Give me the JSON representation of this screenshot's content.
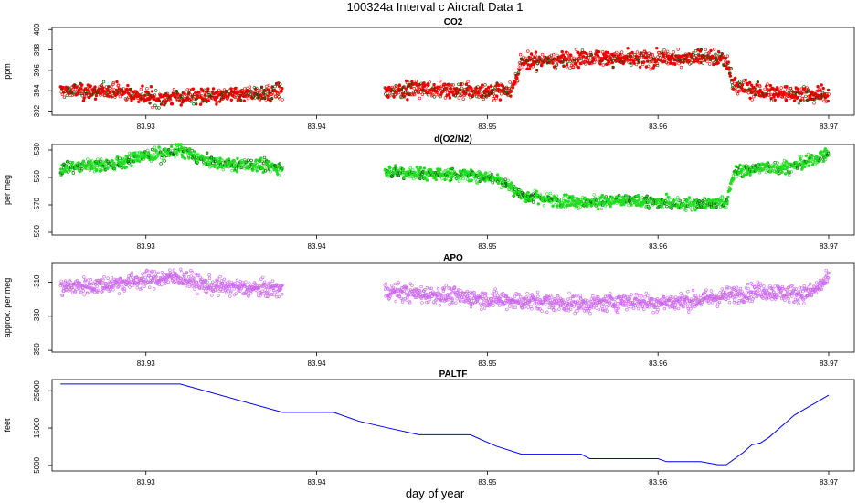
{
  "page": {
    "title": "100324a   Interval c Aircraft Data 1",
    "xlabel": "day of year"
  },
  "colors": {
    "co2": "#ee0000",
    "o2n2": "#22dd22",
    "apo": "#cc66ee",
    "paltf": "#0000ee",
    "axis": "#000000"
  },
  "chart_data": [
    {
      "type": "scatter",
      "title": "CO2",
      "ylabel": "ppm",
      "xlim": [
        83.9245,
        83.9715
      ],
      "ylim": [
        391.6,
        400.2
      ],
      "yticks": [
        392,
        394,
        396,
        398,
        400
      ],
      "xticks": [
        83.93,
        83.94,
        83.95,
        83.96,
        83.97
      ],
      "segments": [
        {
          "x": [
            83.925,
            83.9265,
            83.928,
            83.9295,
            83.931,
            83.9325,
            83.934,
            83.9355,
            83.937,
            83.938
          ],
          "y": [
            394.0,
            393.9,
            394.0,
            393.6,
            393.2,
            393.5,
            393.4,
            393.7,
            393.8,
            393.9
          ]
        },
        {
          "x": [
            83.944,
            83.946,
            83.948,
            83.95,
            83.9515,
            83.952,
            83.9535,
            83.955,
            83.957,
            83.959,
            83.961,
            83.963,
            83.964,
            83.9645,
            83.966,
            83.968,
            83.97
          ],
          "y": [
            393.9,
            394.2,
            394.0,
            393.9,
            394.3,
            396.8,
            397.0,
            397.1,
            397.3,
            397.0,
            397.2,
            397.4,
            397.0,
            394.5,
            393.9,
            393.7,
            393.6
          ]
        }
      ],
      "noise": 0.55
    },
    {
      "type": "scatter",
      "title": "d(O2/N2)",
      "ylabel": "per meg",
      "xlim": [
        83.9245,
        83.9715
      ],
      "ylim": [
        -592,
        -526
      ],
      "yticks": [
        -530,
        -550,
        -570,
        -590
      ],
      "xticks": [
        83.93,
        83.94,
        83.95,
        83.96,
        83.97
      ],
      "segments": [
        {
          "x": [
            83.925,
            83.927,
            83.9285,
            83.9295,
            83.931,
            83.932,
            83.9335,
            83.935,
            83.9365,
            83.938
          ],
          "y": [
            -543,
            -541,
            -540,
            -535,
            -533,
            -530,
            -538,
            -541,
            -541,
            -543
          ]
        },
        {
          "x": [
            83.944,
            83.946,
            83.948,
            83.95,
            83.951,
            83.952,
            83.954,
            83.956,
            83.958,
            83.96,
            83.962,
            83.964,
            83.9645,
            83.966,
            83.968,
            83.97
          ],
          "y": [
            -545,
            -547,
            -548,
            -549,
            -553,
            -563,
            -567,
            -568,
            -567,
            -568,
            -570,
            -568,
            -546,
            -543,
            -542,
            -533
          ]
        }
      ],
      "noise": 3.2
    },
    {
      "type": "scatter",
      "title": "APO",
      "ylabel": "approx. per meg",
      "xlim": [
        83.9245,
        83.9715
      ],
      "ylim": [
        -351,
        -299
      ],
      "yticks": [
        -310,
        -330,
        -350
      ],
      "xticks": [
        83.93,
        83.94,
        83.95,
        83.96,
        83.97
      ],
      "segments": [
        {
          "x": [
            83.925,
            83.927,
            83.929,
            83.9305,
            83.932,
            83.9335,
            83.935,
            83.9365,
            83.938
          ],
          "y": [
            -313,
            -312,
            -310,
            -308,
            -307,
            -312,
            -313,
            -314,
            -314
          ]
        },
        {
          "x": [
            83.944,
            83.946,
            83.948,
            83.95,
            83.952,
            83.954,
            83.956,
            83.958,
            83.96,
            83.962,
            83.964,
            83.966,
            83.968,
            83.969,
            83.97
          ],
          "y": [
            -315,
            -317,
            -318,
            -320,
            -321,
            -322,
            -323,
            -321,
            -322,
            -321,
            -318,
            -315,
            -317,
            -316,
            -308
          ]
        }
      ],
      "noise": 3.6
    },
    {
      "type": "line",
      "title": "PALTF",
      "ylabel": "feet",
      "xlim": [
        83.9245,
        83.9715
      ],
      "ylim": [
        3500,
        28000
      ],
      "yticks": [
        5000,
        15000,
        25000
      ],
      "xticks": [
        83.93,
        83.94,
        83.95,
        83.96,
        83.97
      ],
      "x": [
        83.925,
        83.932,
        83.938,
        83.939,
        83.94,
        83.941,
        83.9425,
        83.944,
        83.946,
        83.948,
        83.949,
        83.9505,
        83.952,
        83.954,
        83.9555,
        83.956,
        83.96,
        83.9605,
        83.9625,
        83.9635,
        83.964,
        83.9645,
        83.965,
        83.9655,
        83.966,
        83.9665,
        83.967,
        83.968,
        83.97
      ],
      "y": [
        26800,
        26800,
        19200,
        19200,
        19200,
        19200,
        16800,
        15200,
        13200,
        13200,
        13200,
        10200,
        8000,
        8000,
        8000,
        6800,
        6800,
        6000,
        6000,
        5200,
        5200,
        6800,
        8500,
        10500,
        11000,
        12500,
        14500,
        18500,
        23800
      ]
    }
  ]
}
